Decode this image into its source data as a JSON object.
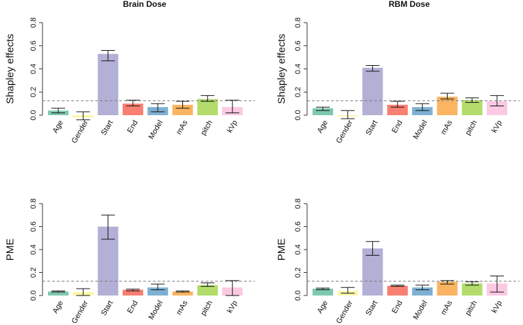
{
  "chart_data": [
    {
      "type": "bar",
      "title": "Brain Dose",
      "ylabel": "Shapley effects",
      "xlabel": "",
      "ylim": [
        0,
        0.8
      ],
      "yticks": [
        "0.0",
        "0.2",
        "0.4",
        "0.6",
        "0.8"
      ],
      "reference_line": 0.125,
      "categories": [
        "Age",
        "Gender",
        "Start",
        "End",
        "Model",
        "mAs",
        "pitch",
        "kVp"
      ],
      "values": [
        0.04,
        -0.02,
        0.53,
        0.1,
        0.07,
        0.09,
        0.14,
        0.07
      ],
      "error_low": [
        0.02,
        -0.04,
        0.47,
        0.08,
        0.03,
        0.06,
        0.12,
        0.02
      ],
      "error_high": [
        0.06,
        0.03,
        0.56,
        0.13,
        0.1,
        0.12,
        0.17,
        0.13
      ]
    },
    {
      "type": "bar",
      "title": "RBM Dose",
      "ylabel": "Shapley effects",
      "xlabel": "",
      "ylim": [
        0,
        0.8
      ],
      "yticks": [
        "0.0",
        "0.2",
        "0.4",
        "0.6",
        "0.8"
      ],
      "reference_line": 0.125,
      "categories": [
        "Age",
        "Gender",
        "Start",
        "End",
        "Model",
        "mAs",
        "pitch",
        "kVp"
      ],
      "values": [
        0.06,
        -0.01,
        0.41,
        0.09,
        0.07,
        0.16,
        0.13,
        0.12
      ],
      "error_low": [
        0.04,
        -0.03,
        0.38,
        0.07,
        0.04,
        0.14,
        0.11,
        0.08
      ],
      "error_high": [
        0.07,
        0.04,
        0.43,
        0.12,
        0.1,
        0.19,
        0.15,
        0.17
      ]
    },
    {
      "type": "bar",
      "title": "",
      "ylabel": "PME",
      "xlabel": "",
      "ylim": [
        0,
        0.8
      ],
      "yticks": [
        "0.0",
        "0.2",
        "0.4",
        "0.6",
        "0.8"
      ],
      "reference_line": 0.125,
      "categories": [
        "Age",
        "Gender",
        "Start",
        "End",
        "Model",
        "mAs",
        "pitch",
        "kVp"
      ],
      "values": [
        0.035,
        0.03,
        0.6,
        0.05,
        0.07,
        0.035,
        0.09,
        0.07
      ],
      "error_low": [
        0.03,
        0.0,
        0.49,
        0.04,
        0.05,
        0.03,
        0.08,
        0.0
      ],
      "error_high": [
        0.04,
        0.06,
        0.7,
        0.055,
        0.1,
        0.04,
        0.11,
        0.13
      ]
    },
    {
      "type": "bar",
      "title": "",
      "ylabel": "PME",
      "xlabel": "",
      "ylim": [
        0,
        0.8
      ],
      "yticks": [
        "0.0",
        "0.2",
        "0.4",
        "0.6",
        "0.8"
      ],
      "reference_line": 0.125,
      "categories": [
        "Age",
        "Gender",
        "Start",
        "End",
        "Model",
        "mAs",
        "pitch",
        "kVp"
      ],
      "values": [
        0.06,
        0.04,
        0.41,
        0.085,
        0.07,
        0.12,
        0.105,
        0.105
      ],
      "error_low": [
        0.05,
        0.02,
        0.35,
        0.08,
        0.05,
        0.1,
        0.09,
        0.03
      ],
      "error_high": [
        0.065,
        0.07,
        0.47,
        0.09,
        0.09,
        0.13,
        0.12,
        0.17
      ]
    }
  ],
  "colors": {
    "Age": "#7fc9b0",
    "Gender": "#fbf7a8",
    "Start": "#b3b0d6",
    "End": "#f97f72",
    "Model": "#7fb0d3",
    "mAs": "#fbb461",
    "pitch": "#b3dc6c",
    "kVp": "#fcc9e3",
    "reference_line": "#777777",
    "axis": "#333333"
  }
}
